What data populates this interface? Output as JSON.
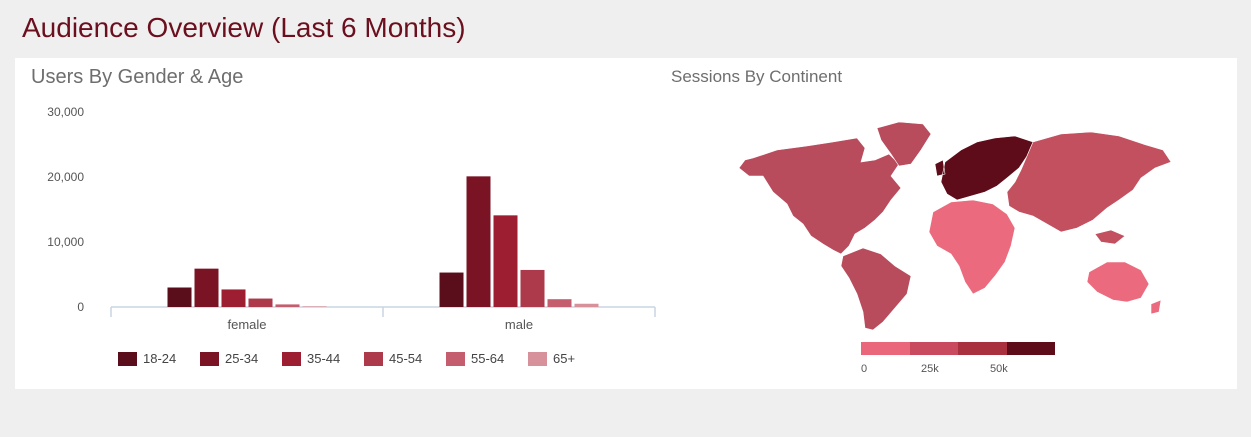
{
  "page": {
    "title": "Audience Overview (Last 6 Months)"
  },
  "bar_panel": {
    "title": "Users By Gender & Age"
  },
  "map_panel": {
    "title": "Sessions By Continent",
    "scale_labels": [
      "0",
      "25k",
      "50k"
    ],
    "scale_colors": [
      "#e9667b",
      "#c94a5f",
      "#a8303f",
      "#5e0c19"
    ],
    "continents": [
      {
        "name": "North America",
        "color": "#b84b5c"
      },
      {
        "name": "Greenland",
        "color": "#b84b5c"
      },
      {
        "name": "South America",
        "color": "#b84b5c"
      },
      {
        "name": "Europe",
        "color": "#5e0c19"
      },
      {
        "name": "Africa",
        "color": "#ec6a7d"
      },
      {
        "name": "Asia",
        "color": "#c2505f"
      },
      {
        "name": "Australia",
        "color": "#ec6a7d"
      }
    ]
  },
  "chart_data": {
    "type": "bar",
    "title": "Users By Gender & Age",
    "categories": [
      "female",
      "male"
    ],
    "ylim": [
      0,
      30000
    ],
    "yticks": [
      0,
      10000,
      20000,
      30000
    ],
    "ytick_labels": [
      "0",
      "10,000",
      "20,000",
      "30,000"
    ],
    "grid": false,
    "legend_position": "bottom",
    "series": [
      {
        "name": "18-24",
        "color": "#5a0d1a",
        "values": [
          3000,
          5300
        ]
      },
      {
        "name": "25-34",
        "color": "#7a1424",
        "values": [
          5900,
          20100
        ]
      },
      {
        "name": "35-44",
        "color": "#9e1e31",
        "values": [
          2700,
          14100
        ]
      },
      {
        "name": "45-54",
        "color": "#ad3a4b",
        "values": [
          1300,
          5700
        ]
      },
      {
        "name": "55-64",
        "color": "#c45d6d",
        "values": [
          400,
          1200
        ]
      },
      {
        "name": "65+",
        "color": "#d7919a",
        "values": [
          100,
          500
        ]
      }
    ]
  }
}
